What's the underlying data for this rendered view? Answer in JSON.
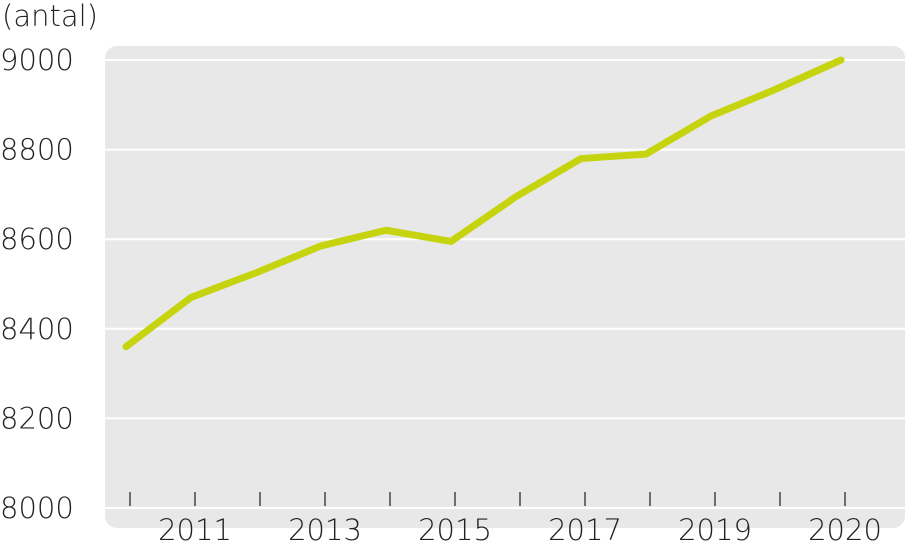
{
  "chart_data": {
    "type": "line",
    "y_label": "(antal)",
    "categories": [
      null,
      "2011",
      null,
      "2013",
      null,
      "2015",
      null,
      "2017",
      null,
      "2019",
      null,
      "2020"
    ],
    "series": [
      {
        "name": null,
        "color": "#c6d40f",
        "values": [
          8360,
          8470,
          8525,
          8585,
          8620,
          8595,
          8695,
          8780,
          8790,
          8875,
          8935,
          9000
        ]
      }
    ],
    "ylim": [
      8000,
      9000
    ],
    "yticks": [
      8000,
      8200,
      8400,
      8600,
      8800,
      9000
    ],
    "grid": true
  }
}
